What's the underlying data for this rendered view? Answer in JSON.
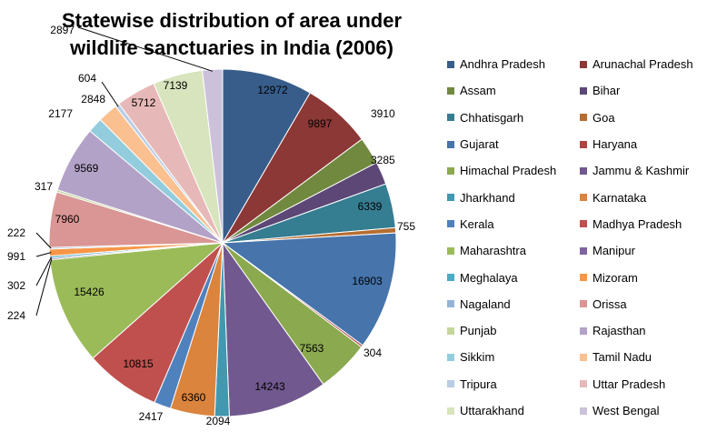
{
  "chart_data": {
    "type": "pie",
    "title": "Statewise distribution of area under wildlife sanctuaries in India (2006)",
    "legend_position": "right",
    "slices": [
      {
        "label": "Andhra Pradesh",
        "value": 12972,
        "color": "#385D8A"
      },
      {
        "label": "Arunachal Pradesh",
        "value": 9897,
        "color": "#8C3836"
      },
      {
        "label": "Assam",
        "value": 3910,
        "color": "#71893F"
      },
      {
        "label": "Bihar",
        "value": 3285,
        "color": "#5C4776"
      },
      {
        "label": "Chhatisgarh",
        "value": 6339,
        "color": "#357D91"
      },
      {
        "label": "Goa",
        "value": 755,
        "color": "#B66D31"
      },
      {
        "label": "Gujarat",
        "value": 16903,
        "color": "#4674AB"
      },
      {
        "label": "Haryana",
        "value": 304,
        "color": "#AE4544"
      },
      {
        "label": "Himachal Pradesh",
        "value": 7563,
        "color": "#8BA94E"
      },
      {
        "label": "Jammu & Kashmir",
        "value": 14243,
        "color": "#71588F"
      },
      {
        "label": "Jharkhand",
        "value": 2094,
        "color": "#4198AF"
      },
      {
        "label": "Karnataka",
        "value": 6360,
        "color": "#DB843D"
      },
      {
        "label": "Kerala",
        "value": 2417,
        "color": "#4F81BD"
      },
      {
        "label": "Madhya Pradesh",
        "value": 10815,
        "color": "#C0504D"
      },
      {
        "label": "Maharashtra",
        "value": 15426,
        "color": "#9BBB59"
      },
      {
        "label": "Manipur",
        "value": 224,
        "color": "#8064A2"
      },
      {
        "label": "Meghalaya",
        "value": 302,
        "color": "#4BACC6"
      },
      {
        "label": "Mizoram",
        "value": 991,
        "color": "#F79646"
      },
      {
        "label": "Nagaland",
        "value": 222,
        "color": "#95B3D7"
      },
      {
        "label": "Orissa",
        "value": 7960,
        "color": "#D99694"
      },
      {
        "label": "Punjab",
        "value": 317,
        "color": "#C3D69B"
      },
      {
        "label": "Rajasthan",
        "value": 9569,
        "color": "#B3A2C7"
      },
      {
        "label": "Sikkim",
        "value": 2177,
        "color": "#93CDDD"
      },
      {
        "label": "Tamil Nadu",
        "value": 2848,
        "color": "#FAC090"
      },
      {
        "label": "Tripura",
        "value": 604,
        "color": "#B9CDE5"
      },
      {
        "label": "Uttar Pradesh",
        "value": 5712,
        "color": "#E6B9B8"
      },
      {
        "label": "Uttarakhand",
        "value": 7139,
        "color": "#D7E4BD"
      },
      {
        "label": "West Bengal",
        "value": 2897,
        "color": "#CCC1DA"
      }
    ]
  }
}
